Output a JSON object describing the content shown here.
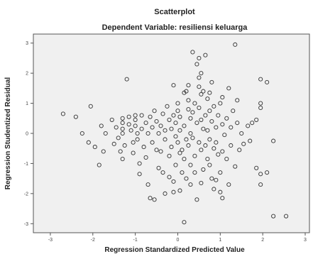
{
  "chart_data": {
    "type": "scatter",
    "title": "Scatterplot",
    "subtitle": "Dependent Variable: resiliensi keluarga",
    "xlabel": "Regression Standardized Predicted Value",
    "ylabel": "Regression Studentized Residual",
    "xlim": [
      -3.4,
      3.1
    ],
    "ylim": [
      -3.3,
      3.3
    ],
    "xticks": [
      "-3",
      "-2",
      "-1",
      "0",
      "1",
      "2",
      "3"
    ],
    "yticks": [
      "-3",
      "-2",
      "-1",
      "0",
      "1",
      "2",
      "3"
    ],
    "grid": false,
    "marker": "open-circle",
    "colors": {
      "plot_bg": "#f0f0f0",
      "marker": "#333333",
      "frame": "#555555"
    },
    "points": [
      [
        -2.7,
        0.65
      ],
      [
        -2.4,
        0.55
      ],
      [
        -2.25,
        0.0
      ],
      [
        -2.1,
        -0.3
      ],
      [
        -2.05,
        0.9
      ],
      [
        -1.95,
        -0.45
      ],
      [
        -1.85,
        -1.05
      ],
      [
        -1.8,
        0.25
      ],
      [
        -1.75,
        -0.6
      ],
      [
        -1.7,
        0.0
      ],
      [
        -1.55,
        0.45
      ],
      [
        -1.5,
        -0.35
      ],
      [
        -1.45,
        0.2
      ],
      [
        -1.4,
        -0.15
      ],
      [
        -1.35,
        -0.6
      ],
      [
        -1.3,
        0.5
      ],
      [
        -1.3,
        0.35
      ],
      [
        -1.3,
        0.15
      ],
      [
        -1.3,
        0.0
      ],
      [
        -1.3,
        -0.85
      ],
      [
        -1.25,
        -0.4
      ],
      [
        -1.2,
        1.8
      ],
      [
        -1.15,
        0.55
      ],
      [
        -1.15,
        0.3
      ],
      [
        -1.1,
        0.1
      ],
      [
        -1.05,
        -0.3
      ],
      [
        -1.05,
        -0.65
      ],
      [
        -1.0,
        0.6
      ],
      [
        -1.0,
        0.45
      ],
      [
        -1.0,
        0.25
      ],
      [
        -0.95,
        0.0
      ],
      [
        -0.95,
        -0.2
      ],
      [
        -0.9,
        -1.0
      ],
      [
        -0.9,
        -1.35
      ],
      [
        -0.85,
        0.6
      ],
      [
        -0.85,
        0.15
      ],
      [
        -0.8,
        -0.45
      ],
      [
        -0.75,
        0.35
      ],
      [
        -0.75,
        -0.8
      ],
      [
        -0.7,
        0.0
      ],
      [
        -0.7,
        -1.7
      ],
      [
        -0.65,
        0.55
      ],
      [
        -0.6,
        -0.3
      ],
      [
        -0.6,
        0.2
      ],
      [
        -0.55,
        0.75
      ],
      [
        -0.5,
        -0.55
      ],
      [
        -0.5,
        0.4
      ],
      [
        -0.45,
        0.0
      ],
      [
        -0.45,
        -1.15
      ],
      [
        -0.4,
        0.25
      ],
      [
        -0.4,
        -0.6
      ],
      [
        -0.35,
        0.65
      ],
      [
        -0.35,
        -1.3
      ],
      [
        -0.3,
        -0.2
      ],
      [
        -0.3,
        0.1
      ],
      [
        -0.3,
        -2.0
      ],
      [
        -0.25,
        0.9
      ],
      [
        -0.2,
        0.45
      ],
      [
        -0.2,
        -0.75
      ],
      [
        -0.2,
        -1.45
      ],
      [
        -0.15,
        0.15
      ],
      [
        -0.15,
        -0.45
      ],
      [
        -0.1,
        1.6
      ],
      [
        -0.1,
        0.6
      ],
      [
        -0.1,
        -1.6
      ],
      [
        -0.05,
        0.35
      ],
      [
        -0.05,
        -0.1
      ],
      [
        -0.05,
        -1.05
      ],
      [
        0.0,
        1.0
      ],
      [
        0.0,
        0.75
      ],
      [
        0.0,
        -0.3
      ],
      [
        0.05,
        0.55
      ],
      [
        0.05,
        0.1
      ],
      [
        0.05,
        -0.65
      ],
      [
        0.05,
        -1.9
      ],
      [
        0.1,
        -0.55
      ],
      [
        0.1,
        -1.3
      ],
      [
        0.15,
        1.35
      ],
      [
        0.15,
        0.25
      ],
      [
        0.15,
        -0.85
      ],
      [
        0.2,
        1.4
      ],
      [
        0.2,
        -0.2
      ],
      [
        0.2,
        -1.5
      ],
      [
        0.25,
        1.1
      ],
      [
        0.25,
        0.8
      ],
      [
        0.25,
        -0.4
      ],
      [
        0.3,
        0.5
      ],
      [
        0.3,
        0.0
      ],
      [
        0.3,
        -1.05
      ],
      [
        0.3,
        -1.7
      ],
      [
        0.35,
        2.7
      ],
      [
        0.35,
        0.7
      ],
      [
        0.35,
        -0.15
      ],
      [
        0.4,
        1.0
      ],
      [
        0.4,
        -0.75
      ],
      [
        0.4,
        -1.3
      ],
      [
        0.45,
        0.35
      ],
      [
        0.45,
        -2.2
      ],
      [
        0.5,
        2.5
      ],
      [
        0.5,
        1.85
      ],
      [
        0.5,
        1.55
      ],
      [
        0.5,
        0.85
      ],
      [
        0.5,
        -0.3
      ],
      [
        0.55,
        2.0
      ],
      [
        0.55,
        0.45
      ],
      [
        0.55,
        -0.55
      ],
      [
        0.55,
        -1.65
      ],
      [
        0.6,
        1.4
      ],
      [
        0.6,
        0.15
      ],
      [
        0.6,
        -1.2
      ],
      [
        0.65,
        2.6
      ],
      [
        0.65,
        0.6
      ],
      [
        0.65,
        -0.4
      ],
      [
        0.7,
        1.15
      ],
      [
        0.7,
        0.1
      ],
      [
        0.7,
        -0.85
      ],
      [
        0.75,
        0.75
      ],
      [
        0.75,
        -0.2
      ],
      [
        0.75,
        -1.05
      ],
      [
        0.8,
        1.7
      ],
      [
        0.8,
        0.4
      ],
      [
        0.8,
        -1.5
      ],
      [
        0.85,
        0.9
      ],
      [
        0.85,
        -0.5
      ],
      [
        0.85,
        -1.85
      ],
      [
        0.9,
        0.2
      ],
      [
        0.9,
        -0.3
      ],
      [
        0.9,
        -1.55
      ],
      [
        0.95,
        0.6
      ],
      [
        0.95,
        -0.7
      ],
      [
        1.0,
        1.0
      ],
      [
        1.0,
        -1.3
      ],
      [
        1.0,
        -1.95
      ],
      [
        1.05,
        0.3
      ],
      [
        1.05,
        -0.6
      ],
      [
        1.05,
        -2.15
      ],
      [
        1.1,
        -0.05
      ],
      [
        1.15,
        0.5
      ],
      [
        1.15,
        -0.85
      ],
      [
        1.2,
        1.5
      ],
      [
        1.2,
        -1.7
      ],
      [
        1.25,
        0.2
      ],
      [
        1.25,
        -0.4
      ],
      [
        1.3,
        0.75
      ],
      [
        1.35,
        2.95
      ],
      [
        1.35,
        -1.1
      ],
      [
        1.4,
        1.1
      ],
      [
        1.4,
        0.35
      ],
      [
        1.45,
        -0.55
      ],
      [
        1.5,
        0.0
      ],
      [
        1.55,
        -0.35
      ],
      [
        1.65,
        0.25
      ],
      [
        1.7,
        -0.25
      ],
      [
        1.75,
        0.35
      ],
      [
        1.85,
        -1.15
      ],
      [
        1.85,
        0.45
      ],
      [
        1.95,
        1.8
      ],
      [
        1.95,
        1.0
      ],
      [
        1.95,
        0.85
      ],
      [
        1.95,
        -1.7
      ],
      [
        1.95,
        -1.35
      ],
      [
        2.1,
        1.7
      ],
      [
        2.1,
        -1.3
      ],
      [
        2.25,
        -0.25
      ],
      [
        2.25,
        -2.75
      ],
      [
        2.55,
        -2.75
      ],
      [
        0.15,
        -2.95
      ],
      [
        -0.65,
        -2.15
      ],
      [
        -0.55,
        -2.2
      ],
      [
        -0.1,
        -1.95
      ],
      [
        0.25,
        1.6
      ],
      [
        0.45,
        2.3
      ],
      [
        0.55,
        1.3
      ],
      [
        0.75,
        1.35
      ],
      [
        1.05,
        1.2
      ]
    ]
  }
}
